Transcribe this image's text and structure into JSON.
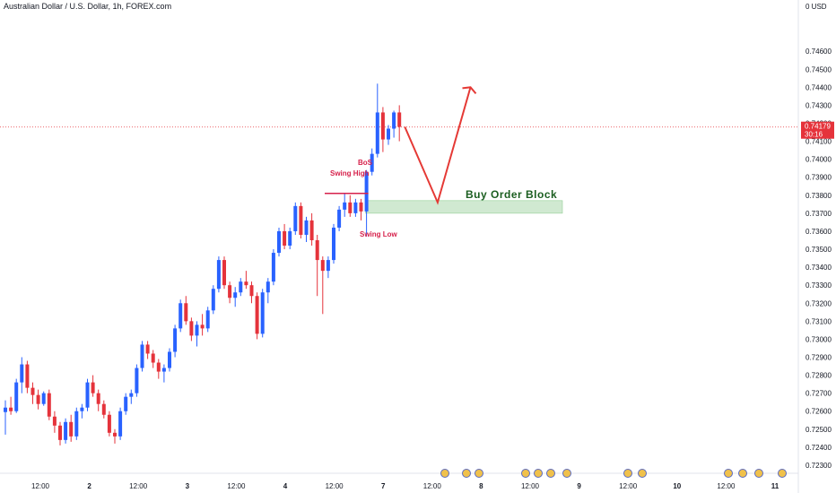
{
  "header": {
    "title": "Australian Dollar / U.S. Dollar, 1h, FOREX.com"
  },
  "chart_data": {
    "type": "candlestick",
    "currency": "USD",
    "ylim": [
      0.7225,
      0.7485
    ],
    "y_ticks": [
      "0.74600",
      "0.74500",
      "0.74400",
      "0.74300",
      "0.74200",
      "0.74100",
      "0.74000",
      "0.73900",
      "0.73800",
      "0.73700",
      "0.73600",
      "0.73500",
      "0.73400",
      "0.73300",
      "0.73200",
      "0.73100",
      "0.73000",
      "0.72900",
      "0.72800",
      "0.72700",
      "0.72600",
      "0.72500",
      "0.72400",
      "0.72300"
    ],
    "x_ticks": [
      "12:00",
      "2",
      "12:00",
      "3",
      "12:00",
      "4",
      "12:00",
      "7",
      "12:00",
      "8",
      "12:00",
      "9",
      "12:00",
      "10",
      "12:00",
      "11"
    ],
    "last_price": {
      "value": "0.74179",
      "countdown": "30:16"
    },
    "colors": {
      "up": "#2962ff",
      "down": "#e5333b",
      "annotation": "#d6214b",
      "arrow": "#e53935",
      "order_block": "#c8e6c9"
    },
    "candles": [
      {
        "o": 0.72595,
        "h": 0.7266,
        "l": 0.7247,
        "c": 0.7262
      },
      {
        "o": 0.7262,
        "h": 0.7268,
        "l": 0.7258,
        "c": 0.726
      },
      {
        "o": 0.726,
        "h": 0.7278,
        "l": 0.7259,
        "c": 0.7276
      },
      {
        "o": 0.7276,
        "h": 0.729,
        "l": 0.727,
        "c": 0.7286
      },
      {
        "o": 0.7286,
        "h": 0.7288,
        "l": 0.727,
        "c": 0.7273
      },
      {
        "o": 0.7273,
        "h": 0.7276,
        "l": 0.7264,
        "c": 0.7269
      },
      {
        "o": 0.7269,
        "h": 0.7272,
        "l": 0.7261,
        "c": 0.7264
      },
      {
        "o": 0.7264,
        "h": 0.7271,
        "l": 0.7263,
        "c": 0.727
      },
      {
        "o": 0.727,
        "h": 0.7272,
        "l": 0.7255,
        "c": 0.7257
      },
      {
        "o": 0.7257,
        "h": 0.726,
        "l": 0.7248,
        "c": 0.7252
      },
      {
        "o": 0.7252,
        "h": 0.7254,
        "l": 0.7241,
        "c": 0.7244
      },
      {
        "o": 0.7244,
        "h": 0.7256,
        "l": 0.7242,
        "c": 0.7254
      },
      {
        "o": 0.7254,
        "h": 0.7258,
        "l": 0.7243,
        "c": 0.7246
      },
      {
        "o": 0.7246,
        "h": 0.7262,
        "l": 0.7244,
        "c": 0.726
      },
      {
        "o": 0.726,
        "h": 0.7264,
        "l": 0.7256,
        "c": 0.7262
      },
      {
        "o": 0.7262,
        "h": 0.7278,
        "l": 0.726,
        "c": 0.7276
      },
      {
        "o": 0.7276,
        "h": 0.728,
        "l": 0.7268,
        "c": 0.727
      },
      {
        "o": 0.727,
        "h": 0.7272,
        "l": 0.726,
        "c": 0.7264
      },
      {
        "o": 0.7264,
        "h": 0.7266,
        "l": 0.7256,
        "c": 0.7258
      },
      {
        "o": 0.7258,
        "h": 0.726,
        "l": 0.7246,
        "c": 0.7248
      },
      {
        "o": 0.7248,
        "h": 0.725,
        "l": 0.7242,
        "c": 0.7246
      },
      {
        "o": 0.7246,
        "h": 0.7262,
        "l": 0.7244,
        "c": 0.726
      },
      {
        "o": 0.726,
        "h": 0.727,
        "l": 0.7258,
        "c": 0.7268
      },
      {
        "o": 0.7268,
        "h": 0.7272,
        "l": 0.7264,
        "c": 0.727
      },
      {
        "o": 0.727,
        "h": 0.7286,
        "l": 0.7268,
        "c": 0.7284
      },
      {
        "o": 0.7284,
        "h": 0.7299,
        "l": 0.7282,
        "c": 0.7297
      },
      {
        "o": 0.7297,
        "h": 0.7299,
        "l": 0.7289,
        "c": 0.7292
      },
      {
        "o": 0.7292,
        "h": 0.7294,
        "l": 0.7284,
        "c": 0.7287
      },
      {
        "o": 0.7287,
        "h": 0.7289,
        "l": 0.7278,
        "c": 0.7282
      },
      {
        "o": 0.7282,
        "h": 0.7286,
        "l": 0.7276,
        "c": 0.7284
      },
      {
        "o": 0.7284,
        "h": 0.7295,
        "l": 0.7282,
        "c": 0.7293
      },
      {
        "o": 0.7293,
        "h": 0.7308,
        "l": 0.729,
        "c": 0.7306
      },
      {
        "o": 0.7306,
        "h": 0.7322,
        "l": 0.7304,
        "c": 0.732
      },
      {
        "o": 0.732,
        "h": 0.7324,
        "l": 0.7308,
        "c": 0.731
      },
      {
        "o": 0.731,
        "h": 0.7312,
        "l": 0.7299,
        "c": 0.7302
      },
      {
        "o": 0.7302,
        "h": 0.731,
        "l": 0.7296,
        "c": 0.7308
      },
      {
        "o": 0.7308,
        "h": 0.7314,
        "l": 0.7302,
        "c": 0.7306
      },
      {
        "o": 0.7306,
        "h": 0.7318,
        "l": 0.7304,
        "c": 0.7316
      },
      {
        "o": 0.7316,
        "h": 0.733,
        "l": 0.7314,
        "c": 0.7328
      },
      {
        "o": 0.7328,
        "h": 0.7346,
        "l": 0.7326,
        "c": 0.7344
      },
      {
        "o": 0.7344,
        "h": 0.7346,
        "l": 0.7328,
        "c": 0.733
      },
      {
        "o": 0.733,
        "h": 0.7332,
        "l": 0.732,
        "c": 0.7323
      },
      {
        "o": 0.7323,
        "h": 0.7329,
        "l": 0.7318,
        "c": 0.7326
      },
      {
        "o": 0.7326,
        "h": 0.7334,
        "l": 0.7324,
        "c": 0.7332
      },
      {
        "o": 0.7332,
        "h": 0.7338,
        "l": 0.7328,
        "c": 0.733
      },
      {
        "o": 0.733,
        "h": 0.7332,
        "l": 0.732,
        "c": 0.7324
      },
      {
        "o": 0.7324,
        "h": 0.7326,
        "l": 0.73,
        "c": 0.7303
      },
      {
        "o": 0.7303,
        "h": 0.7328,
        "l": 0.7301,
        "c": 0.7326
      },
      {
        "o": 0.7326,
        "h": 0.7334,
        "l": 0.732,
        "c": 0.7332
      },
      {
        "o": 0.7332,
        "h": 0.735,
        "l": 0.733,
        "c": 0.7348
      },
      {
        "o": 0.7348,
        "h": 0.7362,
        "l": 0.7346,
        "c": 0.736
      },
      {
        "o": 0.736,
        "h": 0.7364,
        "l": 0.735,
        "c": 0.7352
      },
      {
        "o": 0.7352,
        "h": 0.7362,
        "l": 0.735,
        "c": 0.736
      },
      {
        "o": 0.736,
        "h": 0.7376,
        "l": 0.7358,
        "c": 0.7374
      },
      {
        "o": 0.7374,
        "h": 0.7376,
        "l": 0.7356,
        "c": 0.7358
      },
      {
        "o": 0.7358,
        "h": 0.7368,
        "l": 0.7354,
        "c": 0.7366
      },
      {
        "o": 0.7366,
        "h": 0.737,
        "l": 0.7352,
        "c": 0.7355
      },
      {
        "o": 0.7355,
        "h": 0.7358,
        "l": 0.7324,
        "c": 0.7344
      },
      {
        "o": 0.7344,
        "h": 0.7346,
        "l": 0.7314,
        "c": 0.7338
      },
      {
        "o": 0.7338,
        "h": 0.7346,
        "l": 0.7334,
        "c": 0.7344
      },
      {
        "o": 0.7344,
        "h": 0.7364,
        "l": 0.7342,
        "c": 0.7362
      },
      {
        "o": 0.7362,
        "h": 0.7374,
        "l": 0.736,
        "c": 0.7372
      },
      {
        "o": 0.7372,
        "h": 0.7381,
        "l": 0.7368,
        "c": 0.7376
      },
      {
        "o": 0.7376,
        "h": 0.738,
        "l": 0.7368,
        "c": 0.737
      },
      {
        "o": 0.737,
        "h": 0.7378,
        "l": 0.7368,
        "c": 0.7376
      },
      {
        "o": 0.7376,
        "h": 0.7378,
        "l": 0.7366,
        "c": 0.7371
      },
      {
        "o": 0.7371,
        "h": 0.7394,
        "l": 0.7357,
        "c": 0.7393
      },
      {
        "o": 0.7393,
        "h": 0.7406,
        "l": 0.7391,
        "c": 0.7403
      },
      {
        "o": 0.7403,
        "h": 0.7442,
        "l": 0.7401,
        "c": 0.7426
      },
      {
        "o": 0.7426,
        "h": 0.7429,
        "l": 0.7404,
        "c": 0.7411
      },
      {
        "o": 0.7411,
        "h": 0.7419,
        "l": 0.7408,
        "c": 0.7417
      },
      {
        "o": 0.7417,
        "h": 0.7427,
        "l": 0.7412,
        "c": 0.7426
      },
      {
        "o": 0.7426,
        "h": 0.743,
        "l": 0.741,
        "c": 0.7418
      }
    ],
    "annotations": {
      "bos": "BoS",
      "swing_high": "Swing High",
      "swing_low": "Swing Low",
      "order_block_label": "Buy Order Block",
      "order_block_range": [
        0.737,
        0.7377
      ],
      "swing_high_level": 0.7381,
      "swing_low_level": 0.7357,
      "projection": [
        [
          73,
          0.7418
        ],
        [
          79,
          0.7376
        ],
        [
          85,
          0.744
        ]
      ]
    }
  }
}
